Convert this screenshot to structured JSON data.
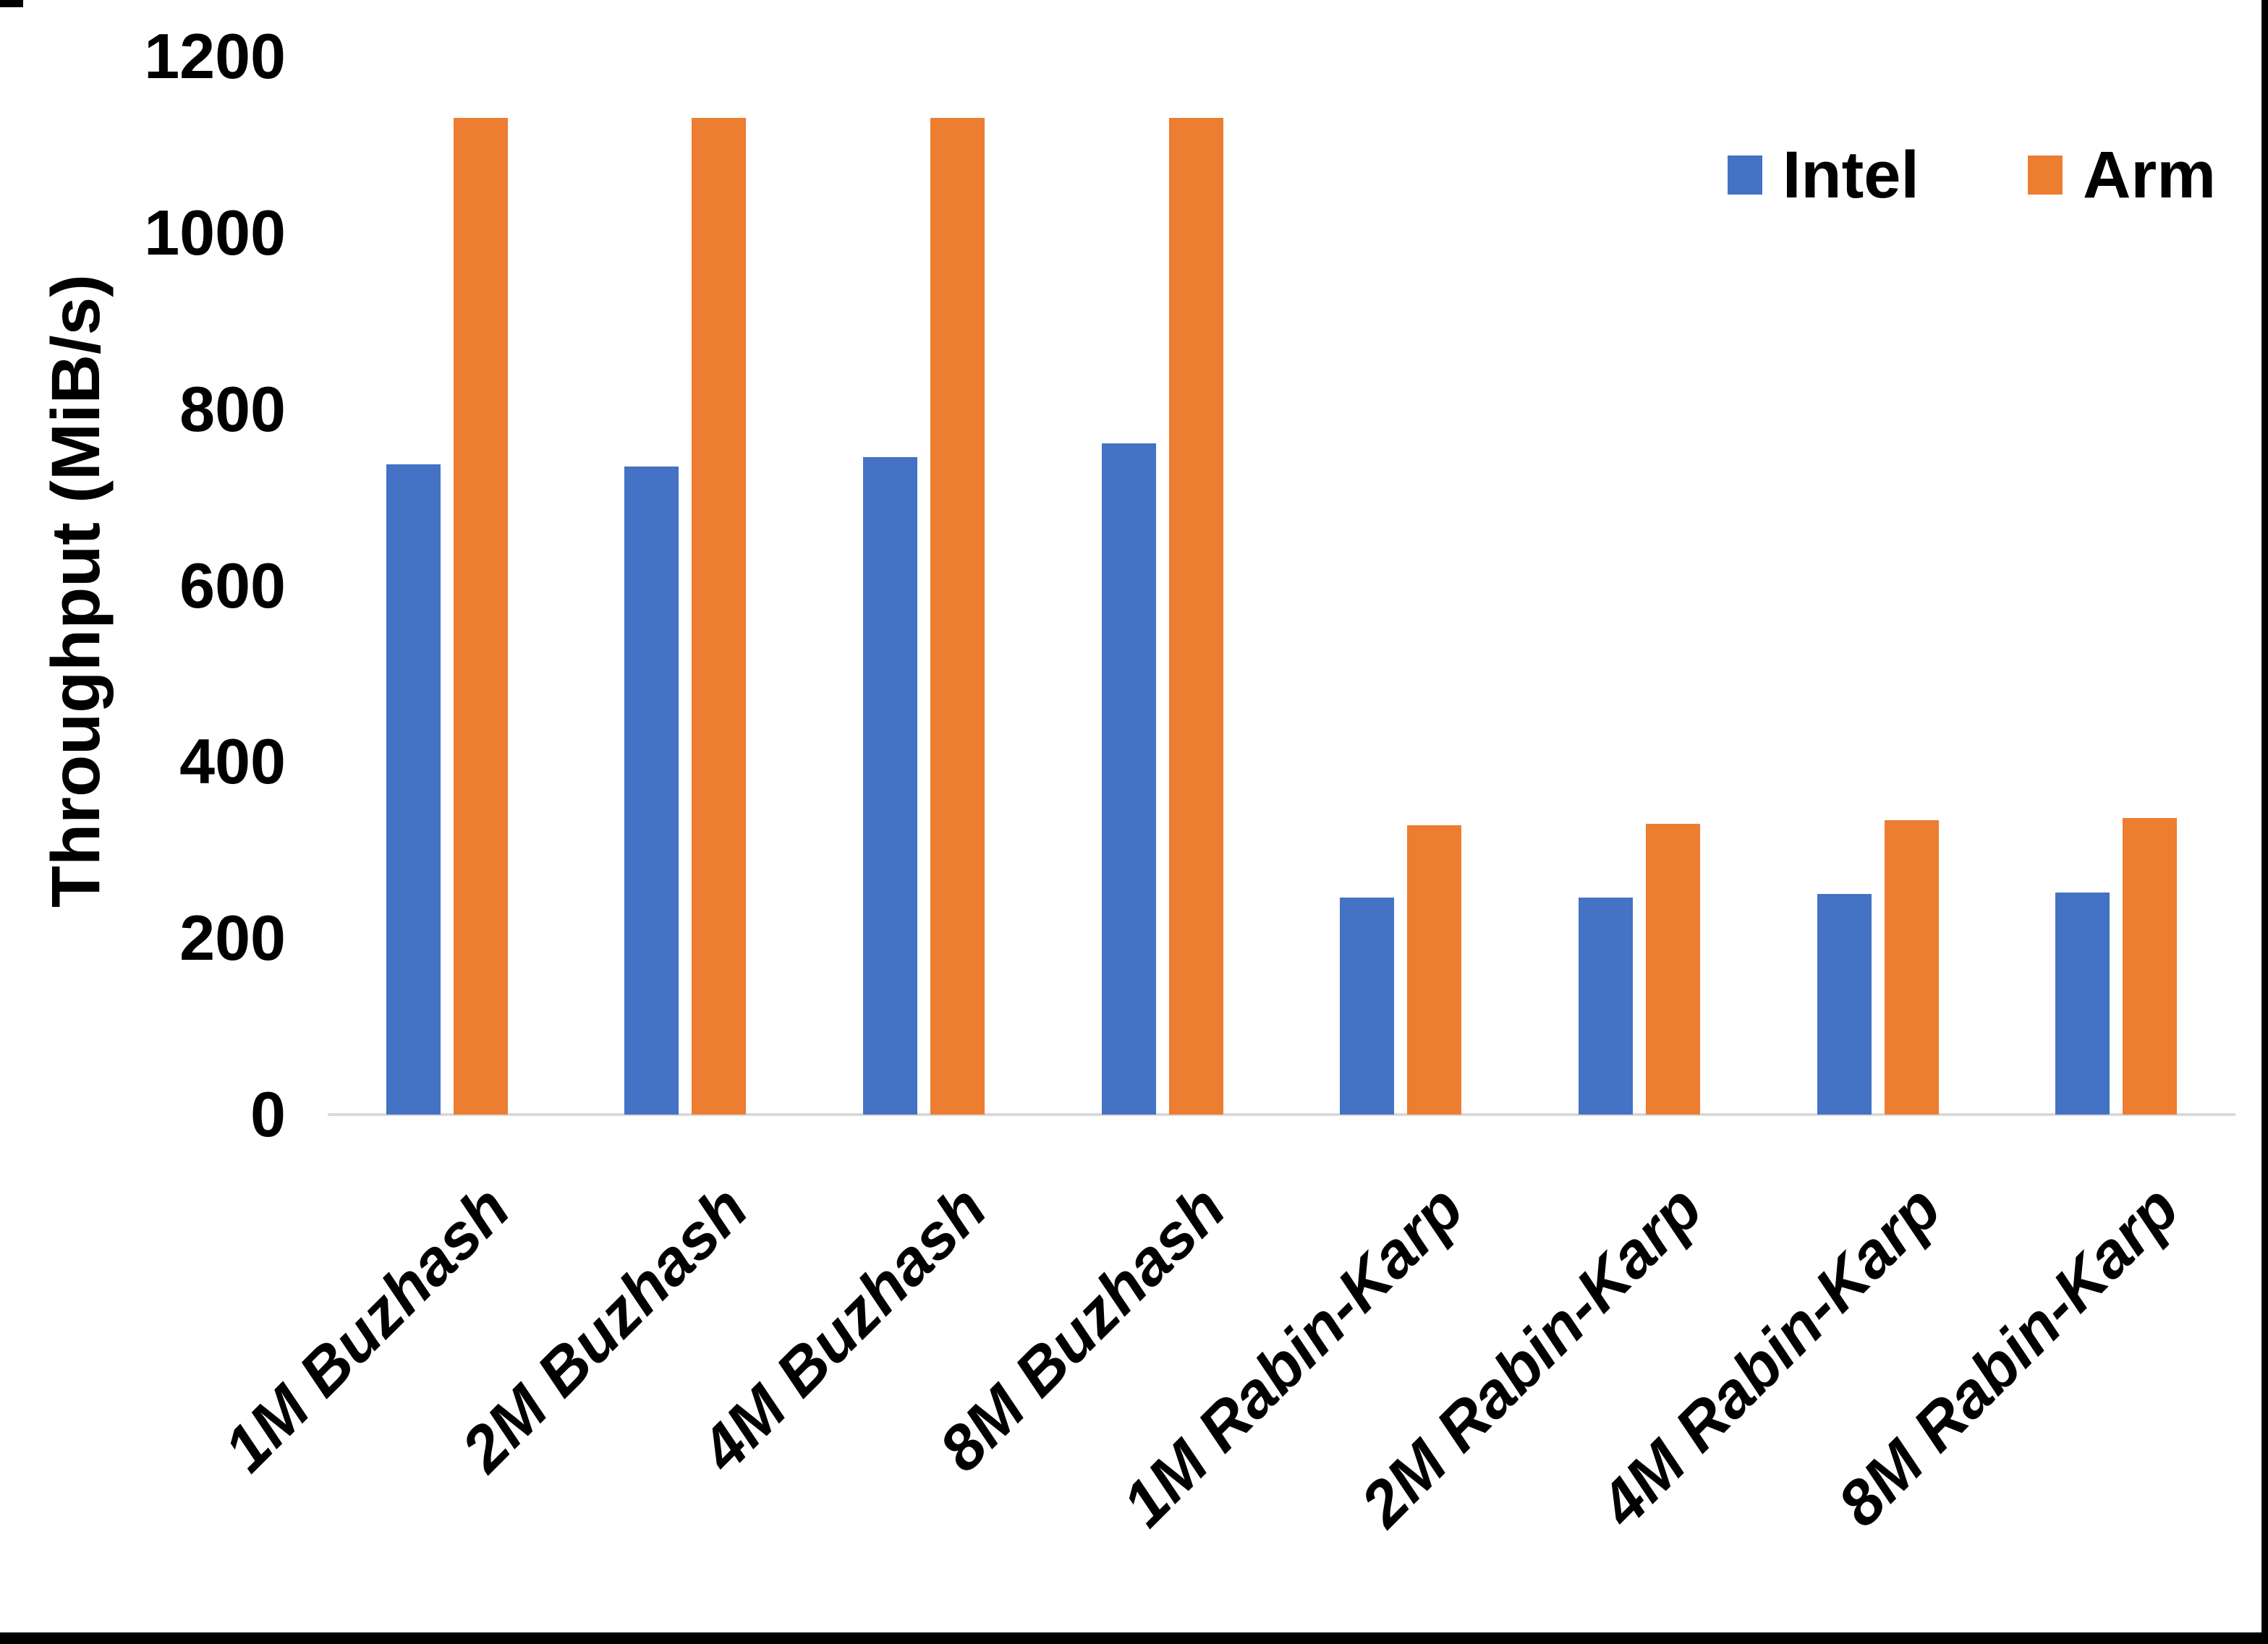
{
  "colors": {
    "intel": "#4472C4",
    "arm": "#ED7D31",
    "axis_line": "#D9D9D9",
    "text": "#000000",
    "frame": "#000000"
  },
  "y_axis": {
    "title": "Throughput (MiB/s)",
    "tick_labels": [
      "0",
      "200",
      "400",
      "600",
      "800",
      "1000",
      "1200"
    ],
    "min": 0,
    "max": 1200
  },
  "legend": {
    "items": [
      {
        "label": "Intel",
        "color_key": "intel"
      },
      {
        "label": "Arm",
        "color_key": "arm"
      }
    ]
  },
  "chart_data": {
    "type": "bar",
    "title": "",
    "xlabel": "",
    "ylabel": "Throughput (MiB/s)",
    "ylim": [
      0,
      1200
    ],
    "yticks": [
      0,
      200,
      400,
      600,
      800,
      1000,
      1200
    ],
    "grid": false,
    "legend_position": "top-right",
    "categories": [
      "1M Buzhash",
      "2M Buzhash",
      "4M Buzhash",
      "8M Buzhash",
      "1M Rabin-Karp",
      "2M Rabin-Karp",
      "4M Rabin-Karp",
      "8M Rabin-Karp"
    ],
    "series": [
      {
        "name": "Intel",
        "color": "#4472C4",
        "values": [
          737,
          735,
          746,
          761,
          246,
          246,
          250,
          252
        ]
      },
      {
        "name": "Arm",
        "color": "#ED7D31",
        "values": [
          1130,
          1130,
          1130,
          1130,
          328,
          330,
          334,
          336
        ]
      }
    ]
  }
}
